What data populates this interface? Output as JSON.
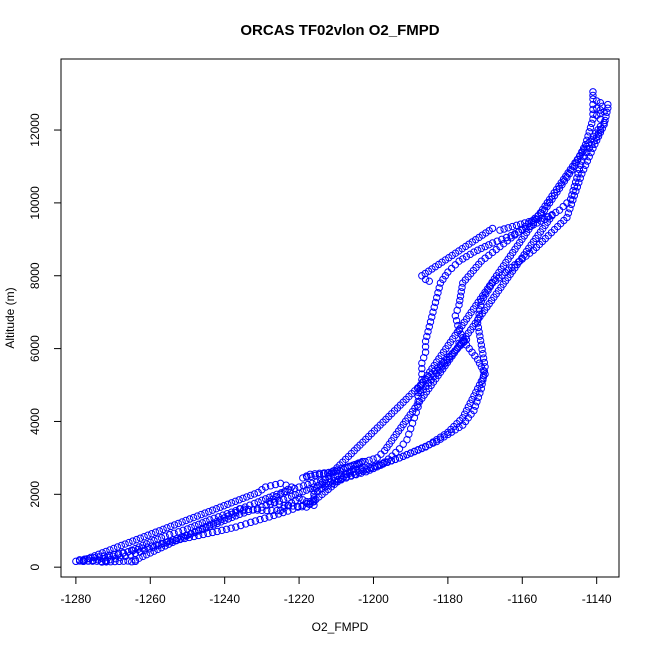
{
  "chart_data": {
    "type": "scatter",
    "title": "ORCAS TF02vlon O2_FMPD",
    "xlabel": "O2_FMPD",
    "ylabel": "Altitude (m)",
    "xlim": [
      -1284,
      -1134
    ],
    "ylim": [
      -270,
      13950
    ],
    "xticks": [
      -1280,
      -1260,
      -1240,
      -1220,
      -1200,
      -1180,
      -1160,
      -1140
    ],
    "yticks": [
      0,
      2000,
      4000,
      6000,
      8000,
      10000,
      12000
    ],
    "marker": "open-circle",
    "color": "#0000ff",
    "series": [
      {
        "profile": "ascent",
        "points": [
          [
            -1279,
            200
          ],
          [
            -1275,
            260
          ],
          [
            -1271,
            330
          ],
          [
            -1266,
            420
          ],
          [
            -1262,
            520
          ],
          [
            -1257,
            640
          ],
          [
            -1252,
            760
          ],
          [
            -1247,
            870
          ],
          [
            -1242,
            980
          ],
          [
            -1237,
            1100
          ],
          [
            -1233,
            1230
          ],
          [
            -1228,
            1380
          ],
          [
            -1223,
            1540
          ],
          [
            -1219,
            1700
          ],
          [
            -1216,
            1850
          ],
          [
            -1216,
            2000
          ],
          [
            -1214,
            2150
          ],
          [
            -1210,
            2350
          ],
          [
            -1206,
            2500
          ],
          [
            -1202,
            2620
          ],
          [
            -1198,
            2800
          ],
          [
            -1195,
            3050
          ],
          [
            -1193,
            3250
          ],
          [
            -1191,
            3500
          ],
          [
            -1190,
            3800
          ],
          [
            -1189,
            4100
          ],
          [
            -1188,
            4400
          ],
          [
            -1188,
            4700
          ],
          [
            -1187,
            5000
          ],
          [
            -1187,
            5300
          ],
          [
            -1187,
            5600
          ],
          [
            -1186,
            5900
          ],
          [
            -1186,
            6200
          ],
          [
            -1185,
            6600
          ],
          [
            -1184,
            7000
          ],
          [
            -1183,
            7400
          ],
          [
            -1182,
            7800
          ],
          [
            -1180,
            8100
          ],
          [
            -1177,
            8400
          ],
          [
            -1173,
            8650
          ],
          [
            -1168,
            8900
          ],
          [
            -1163,
            9100
          ],
          [
            -1158,
            9350
          ],
          [
            -1154,
            9550
          ],
          [
            -1150,
            9800
          ],
          [
            -1147,
            10100
          ],
          [
            -1146,
            10450
          ],
          [
            -1145,
            10800
          ],
          [
            -1144,
            11150
          ],
          [
            -1142,
            11500
          ],
          [
            -1140,
            11800
          ],
          [
            -1139,
            12000
          ]
        ]
      },
      {
        "profile": "descent-a",
        "points": [
          [
            -1141,
            12700
          ],
          [
            -1141,
            12300
          ],
          [
            -1143,
            11600
          ],
          [
            -1146,
            11000
          ],
          [
            -1150,
            10400
          ],
          [
            -1154,
            9800
          ],
          [
            -1161,
            9200
          ],
          [
            -1166,
            8800
          ],
          [
            -1171,
            8400
          ],
          [
            -1176,
            7800
          ],
          [
            -1177,
            7200
          ],
          [
            -1178,
            6900
          ],
          [
            -1177,
            6500
          ],
          [
            -1175,
            6100
          ],
          [
            -1172,
            5700
          ],
          [
            -1170,
            5300
          ],
          [
            -1172,
            4900
          ],
          [
            -1174,
            4500
          ],
          [
            -1176,
            4100
          ],
          [
            -1180,
            3700
          ],
          [
            -1186,
            3300
          ],
          [
            -1193,
            3000
          ],
          [
            -1202,
            2700
          ],
          [
            -1213,
            2400
          ],
          [
            -1220,
            2200
          ],
          [
            -1226,
            2000
          ],
          [
            -1232,
            1750
          ],
          [
            -1237,
            1550
          ],
          [
            -1244,
            1300
          ],
          [
            -1250,
            1050
          ],
          [
            -1256,
            850
          ],
          [
            -1262,
            600
          ],
          [
            -1266,
            420
          ],
          [
            -1270,
            300
          ],
          [
            -1274,
            200
          ],
          [
            -1278,
            160
          ]
        ]
      },
      {
        "profile": "descent-b",
        "points": [
          [
            -1137,
            12600
          ],
          [
            -1138,
            12150
          ],
          [
            -1141,
            11500
          ],
          [
            -1144,
            10800
          ],
          [
            -1146,
            10200
          ],
          [
            -1148,
            9600
          ],
          [
            -1153,
            9100
          ],
          [
            -1157,
            8700
          ],
          [
            -1162,
            8300
          ],
          [
            -1168,
            7800
          ],
          [
            -1171,
            7300
          ],
          [
            -1172,
            6700
          ],
          [
            -1171,
            6100
          ],
          [
            -1170,
            5500
          ],
          [
            -1171,
            4900
          ],
          [
            -1173,
            4300
          ],
          [
            -1176,
            3900
          ],
          [
            -1183,
            3450
          ],
          [
            -1193,
            3000
          ],
          [
            -1205,
            2550
          ],
          [
            -1216,
            2200
          ],
          [
            -1223,
            1900
          ],
          [
            -1230,
            1650
          ],
          [
            -1236,
            1450
          ],
          [
            -1242,
            1200
          ],
          [
            -1248,
            950
          ],
          [
            -1254,
            750
          ],
          [
            -1259,
            550
          ],
          [
            -1264,
            380
          ],
          [
            -1268,
            260
          ],
          [
            -1272,
            180
          ]
        ]
      },
      {
        "profile": "clusters",
        "points": [
          [
            -1141,
            13050
          ],
          [
            -1141,
            12950
          ],
          [
            -1141,
            12850
          ],
          [
            -1140,
            12800
          ],
          [
            -1139,
            12750
          ],
          [
            -1137,
            12700
          ],
          [
            -1140,
            12600
          ],
          [
            -1138,
            12500
          ],
          [
            -1140,
            12400
          ],
          [
            -1139,
            12300
          ],
          [
            -1138,
            12200
          ],
          [
            -1139,
            12100
          ],
          [
            -1188,
            4900
          ],
          [
            -1188,
            4800
          ],
          [
            -1188,
            4700
          ],
          [
            -1176,
            6200
          ],
          [
            -1177,
            6150
          ],
          [
            -1175,
            6250
          ],
          [
            -1216,
            2100
          ],
          [
            -1216,
            2000
          ],
          [
            -1216,
            1900
          ],
          [
            -1216,
            1800
          ],
          [
            -1216,
            1700
          ],
          [
            -1220,
            1900
          ],
          [
            -1225,
            1550
          ],
          [
            -1226,
            1550
          ],
          [
            -1230,
            1560
          ],
          [
            -1236,
            1600
          ],
          [
            -1235,
            1550
          ],
          [
            -1237,
            1500
          ],
          [
            -1265,
            150
          ],
          [
            -1264,
            160
          ],
          [
            -1266,
            170
          ],
          [
            -1273,
            140
          ],
          [
            -1272,
            160
          ],
          [
            -1279,
            170
          ],
          [
            -1280,
            160
          ],
          [
            -1278,
            190
          ],
          [
            -1231,
            2050
          ],
          [
            -1229,
            2200
          ],
          [
            -1225,
            2300
          ],
          [
            -1222,
            2200
          ],
          [
            -1228,
            1800
          ],
          [
            -1224,
            1700
          ],
          [
            -1218,
            1650
          ],
          [
            -1203,
            2900
          ],
          [
            -1209,
            2650
          ],
          [
            -1219,
            2450
          ],
          [
            -1217,
            2550
          ],
          [
            -1212,
            2600
          ],
          [
            -1199,
            3000
          ],
          [
            -1197,
            3200
          ],
          [
            -1152,
            9650
          ],
          [
            -1156,
            9550
          ],
          [
            -1166,
            9250
          ],
          [
            -1168,
            9300
          ],
          [
            -1187,
            8000
          ],
          [
            -1186,
            7900
          ],
          [
            -1185,
            7850
          ]
        ]
      }
    ]
  }
}
